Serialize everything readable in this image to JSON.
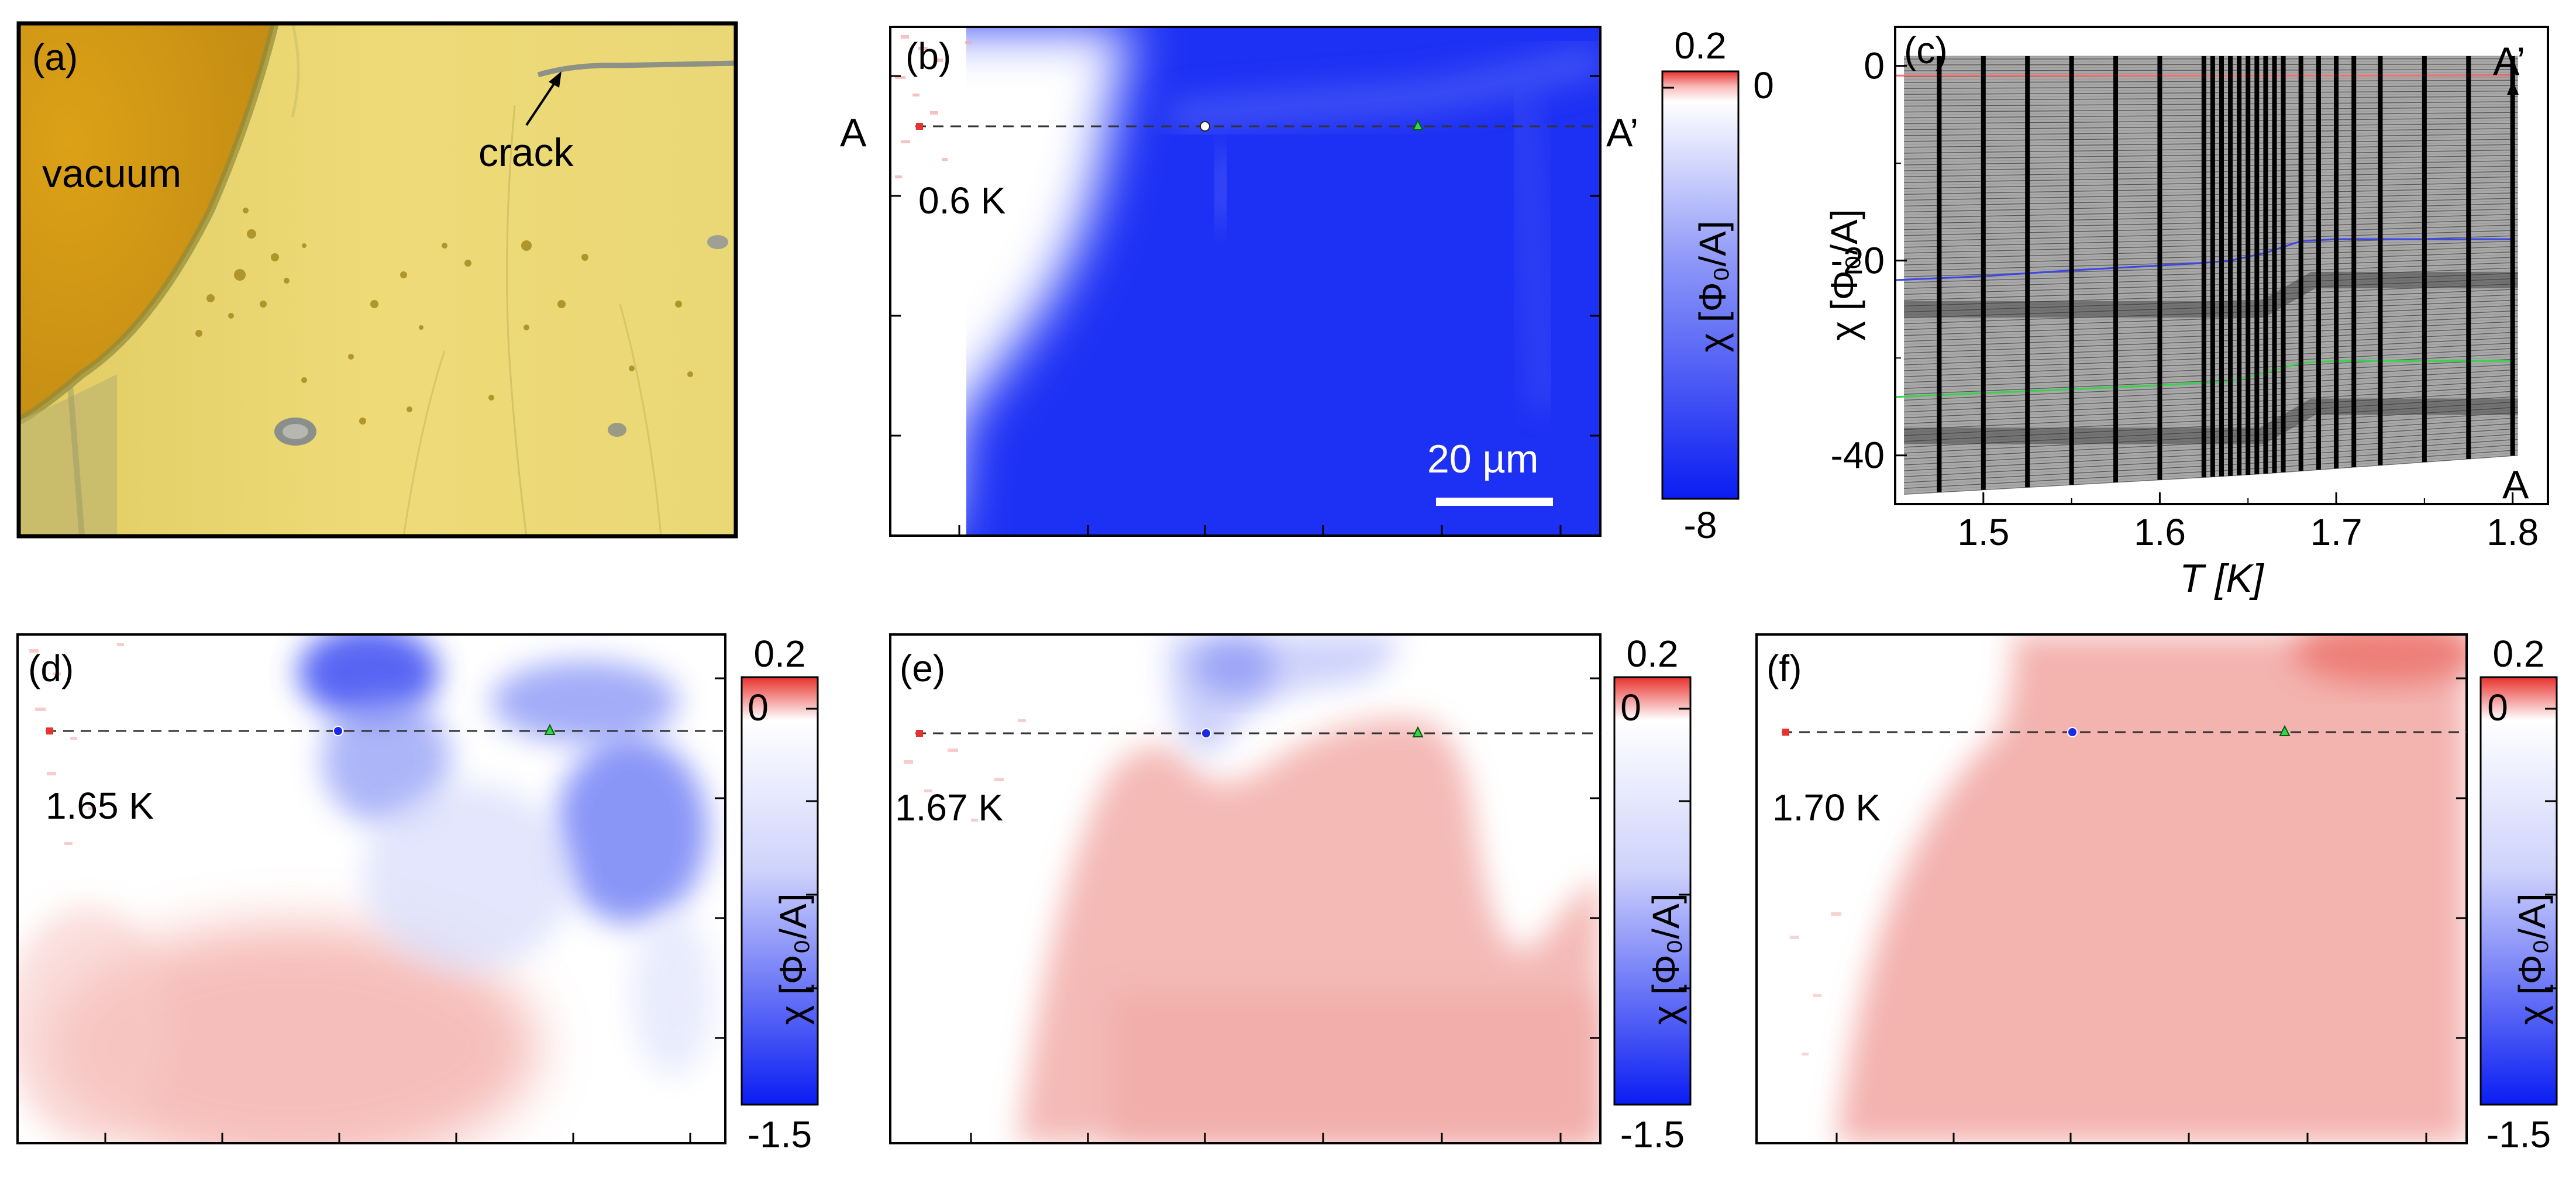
{
  "figure": {
    "panels": {
      "a": {
        "label": "(a)",
        "vacuum_label": "vacuum",
        "crack_label": "crack"
      },
      "b": {
        "label": "(b)",
        "temperature": "0.6 K",
        "left_marker": "A",
        "right_marker": "A’",
        "scale_bar": "20 µm",
        "colorbar": {
          "max": "0.2",
          "zero": "0",
          "min": "-8",
          "label": "χ [Φ₀/A]"
        }
      },
      "c": {
        "label": "(c)",
        "top_marker": "A’",
        "bottom_marker": "A",
        "xlabel": "T [K]",
        "ylabel": "χ [Φ₀/A]"
      },
      "d": {
        "label": "(d)",
        "temperature": "1.65 K",
        "colorbar": {
          "max": "0.2",
          "zero": "0",
          "min": "-1.5",
          "label": "χ [Φ₀/A]"
        }
      },
      "e": {
        "label": "(e)",
        "temperature": "1.67 K",
        "colorbar": {
          "max": "0.2",
          "zero": "0",
          "min": "-1.5",
          "label": "χ [Φ₀/A]"
        }
      },
      "f": {
        "label": "(f)",
        "temperature": "1.70 K",
        "colorbar": {
          "max": "0.2",
          "zero": "0",
          "min": "-1.5",
          "label": "χ [Φ₀/A]"
        }
      }
    },
    "colors": {
      "positive": "#e8322e",
      "neutral": "#ffffff",
      "negative": "#0a1df2",
      "red_trace": "#ff6a6a",
      "blue_trace": "#3b46e6",
      "green_trace": "#33d64a"
    }
  },
  "chart_data": {
    "type": "line",
    "panel": "c",
    "title": "",
    "xlabel": "T [K]",
    "ylabel": "χ [Φ₀/A]",
    "xlim": [
      1.45,
      1.82
    ],
    "ylim": [
      -45,
      4
    ],
    "x_ticks": [
      "1.5",
      "1.6",
      "1.7",
      "1.8"
    ],
    "y_ticks": [
      "0",
      "-20",
      "-40"
    ],
    "series": [
      {
        "name": "red-marker-trace",
        "color": "#ff6a6a",
        "x": [
          1.45,
          1.5,
          1.55,
          1.6,
          1.62,
          1.64,
          1.66,
          1.68,
          1.7,
          1.75,
          1.8
        ],
        "y": [
          -1,
          -1,
          -1,
          -1,
          -1,
          -1,
          -1,
          -1,
          -1,
          -1,
          -1
        ]
      },
      {
        "name": "blue-marker-trace",
        "color": "#3b46e6",
        "x": [
          1.45,
          1.5,
          1.55,
          1.6,
          1.62,
          1.64,
          1.66,
          1.68,
          1.7,
          1.75,
          1.8
        ],
        "y": [
          -22,
          -21.6,
          -21,
          -20.5,
          -20.3,
          -20,
          -19.2,
          -18,
          -17.8,
          -17.8,
          -17.8
        ]
      },
      {
        "name": "green-marker-trace",
        "color": "#33d64a",
        "x": [
          1.45,
          1.5,
          1.55,
          1.6,
          1.62,
          1.64,
          1.66,
          1.68,
          1.7,
          1.75,
          1.8
        ],
        "y": [
          -34,
          -33.6,
          -33.2,
          -32.8,
          -32.6,
          -32.4,
          -31.5,
          -30.5,
          -30.3,
          -30.3,
          -30.3
        ]
      }
    ],
    "measurement_temperatures": [
      1.475,
      1.5,
      1.525,
      1.55,
      1.575,
      1.6,
      1.625,
      1.63,
      1.635,
      1.64,
      1.645,
      1.65,
      1.655,
      1.66,
      1.665,
      1.67,
      1.68,
      1.69,
      1.7,
      1.71,
      1.725,
      1.75,
      1.775,
      1.8
    ],
    "envelope": {
      "top": 1,
      "bottom_start": -44,
      "bottom_end": -40
    }
  }
}
